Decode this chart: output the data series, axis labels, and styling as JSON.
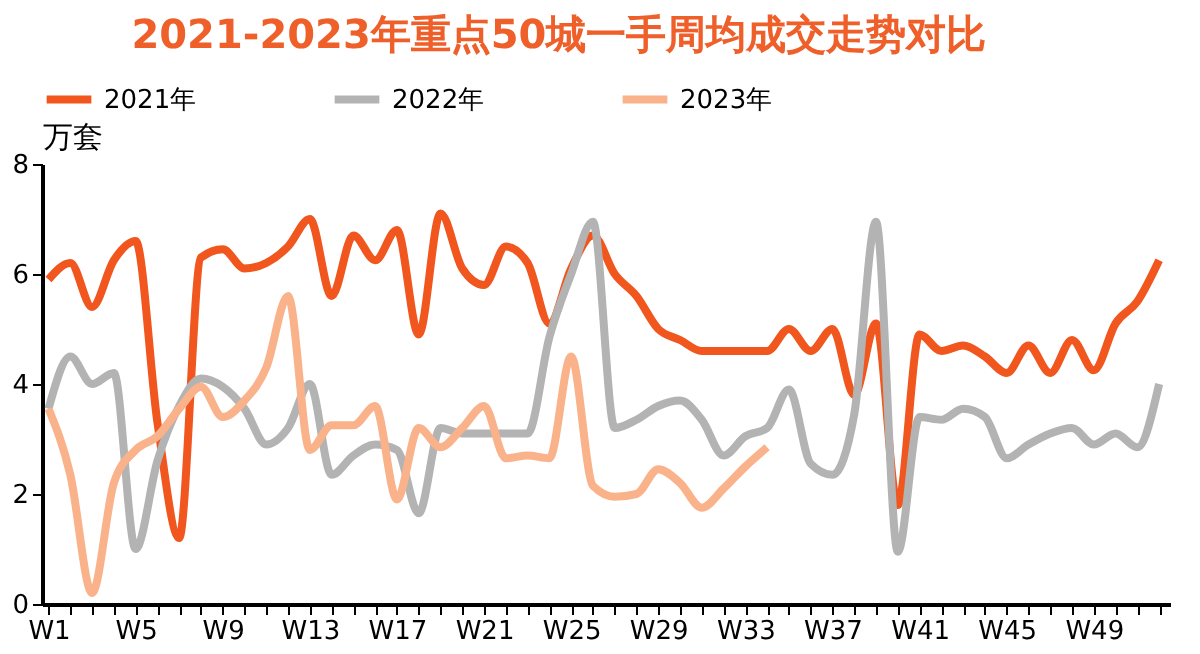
{
  "chart_data": {
    "type": "line",
    "title": "2021-2023年重点50城一手周均成交走势对比",
    "ylabel": "万套",
    "categories": [
      "W1",
      null,
      null,
      null,
      "W5",
      null,
      null,
      null,
      "W9",
      null,
      null,
      null,
      "W13",
      null,
      null,
      null,
      "W17",
      null,
      null,
      null,
      "W21",
      null,
      null,
      null,
      "W25",
      null,
      null,
      null,
      "W29",
      null,
      null,
      null,
      "W33",
      null,
      null,
      null,
      "W37",
      null,
      null,
      null,
      "W41",
      null,
      null,
      null,
      "W45",
      null,
      null,
      null,
      "W49",
      null,
      null,
      null
    ],
    "series": [
      {
        "name": "2021年",
        "color": "#f0561d",
        "values": [
          5.9,
          6.2,
          5.4,
          6.25,
          6.6,
          3.3,
          1.2,
          6.3,
          6.45,
          6.1,
          6.2,
          6.5,
          7.0,
          5.6,
          6.7,
          6.25,
          6.8,
          4.9,
          7.1,
          6.1,
          5.8,
          6.5,
          6.2,
          5.1,
          6.1,
          6.7,
          6.0,
          5.6,
          5.0,
          4.8,
          4.6,
          4.6,
          4.6,
          4.6,
          5.0,
          4.6,
          5.0,
          3.8,
          5.1,
          1.8,
          4.9,
          4.6,
          4.7,
          4.5,
          4.2,
          4.7,
          4.2,
          4.8,
          4.25,
          5.1,
          5.5,
          6.25
        ]
      },
      {
        "name": "2022年",
        "color": "#b3b3b3",
        "values": [
          3.55,
          4.5,
          4.0,
          4.2,
          1.0,
          2.6,
          3.6,
          4.1,
          3.95,
          3.55,
          2.9,
          3.2,
          4.0,
          2.35,
          2.7,
          2.9,
          2.8,
          1.65,
          3.2,
          3.1,
          3.1,
          3.1,
          3.1,
          4.85,
          6.0,
          6.95,
          3.2,
          3.35,
          3.6,
          3.7,
          3.35,
          2.7,
          3.05,
          3.2,
          3.9,
          2.55,
          2.35,
          3.45,
          6.95,
          0.95,
          3.4,
          3.35,
          3.55,
          3.4,
          2.65,
          2.9,
          3.1,
          3.2,
          2.9,
          3.1,
          2.85,
          4.0
        ]
      },
      {
        "name": "2023年",
        "color": "#f9b28a",
        "values": [
          3.55,
          2.35,
          0.2,
          2.2,
          2.8,
          3.05,
          3.55,
          3.95,
          3.4,
          3.7,
          4.3,
          5.6,
          2.8,
          3.25,
          3.25,
          3.6,
          1.9,
          3.2,
          2.85,
          3.2,
          3.6,
          2.65,
          2.7,
          2.65,
          4.5,
          2.15,
          1.95,
          2.0,
          2.45,
          2.2,
          1.75,
          2.1,
          2.5,
          2.85,
          null,
          null,
          null,
          null,
          null,
          null,
          null,
          null,
          null,
          null,
          null,
          null,
          null,
          null,
          null,
          null,
          null,
          null
        ]
      }
    ],
    "ylim": [
      0,
      8
    ],
    "yticks": [
      0,
      2,
      4,
      6,
      8
    ],
    "grid": false,
    "legend": "top",
    "marker": "none",
    "line_style": "solid"
  }
}
